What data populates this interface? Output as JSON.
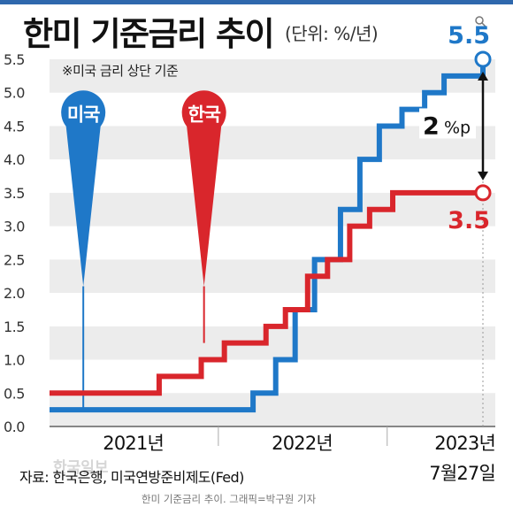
{
  "header": {
    "title": "한미 기준금리 추이",
    "unit": "(단위: %/년)"
  },
  "note": "※미국 금리 상단 기준",
  "footer": {
    "source": "자료: 한국은행, 미국연방준비제도(Fed)",
    "credit": "한미 기준금리 추이. 그래픽=박구원 기자",
    "watermark": "한국일보"
  },
  "colors": {
    "us": "#1f78c8",
    "korea": "#d9262c",
    "band": "#ececec",
    "top_bar": "#2f68ad"
  },
  "chart_data": {
    "type": "line",
    "step": true,
    "xlim": [
      "2021-01-01",
      "2023-07-27"
    ],
    "ylim": [
      0,
      5.5
    ],
    "yticks": [
      "0.0",
      "0.5",
      "1.0",
      "1.5",
      "2.0",
      "2.5",
      "3.0",
      "3.5",
      "4.0",
      "4.5",
      "5.0",
      "5.5"
    ],
    "xticks": [
      {
        "label": "2021년",
        "x": "2021-07-01"
      },
      {
        "label": "2022년",
        "x": "2022-07-01"
      },
      {
        "label": "2023년",
        "x": "2023-07-27",
        "sublabel": "7월27일"
      }
    ],
    "series": [
      {
        "name": "미국",
        "color": "#1f78c8",
        "points": [
          [
            "2021-01-01",
            0.25
          ],
          [
            "2022-03-17",
            0.5
          ],
          [
            "2022-05-05",
            1.0
          ],
          [
            "2022-06-16",
            1.75
          ],
          [
            "2022-07-28",
            2.5
          ],
          [
            "2022-09-22",
            3.25
          ],
          [
            "2022-11-03",
            4.0
          ],
          [
            "2022-12-15",
            4.5
          ],
          [
            "2023-02-02",
            4.75
          ],
          [
            "2023-03-23",
            5.0
          ],
          [
            "2023-05-04",
            5.25
          ],
          [
            "2023-07-27",
            5.5
          ]
        ],
        "end_label": "5.5"
      },
      {
        "name": "한국",
        "color": "#d9262c",
        "points": [
          [
            "2021-01-01",
            0.5
          ],
          [
            "2021-08-26",
            0.75
          ],
          [
            "2021-11-25",
            1.0
          ],
          [
            "2022-01-14",
            1.25
          ],
          [
            "2022-04-14",
            1.5
          ],
          [
            "2022-05-26",
            1.75
          ],
          [
            "2022-07-13",
            2.25
          ],
          [
            "2022-08-25",
            2.5
          ],
          [
            "2022-10-12",
            3.0
          ],
          [
            "2022-11-24",
            3.25
          ],
          [
            "2023-01-13",
            3.5
          ],
          [
            "2023-07-27",
            3.5
          ]
        ],
        "end_label": "3.5"
      }
    ],
    "pins": [
      {
        "label": "미국",
        "x": "2021-03-15",
        "y": 2.1,
        "series": "미국"
      },
      {
        "label": "한국",
        "x": "2021-12-01",
        "y": 2.1,
        "series": "한국"
      }
    ],
    "gap_annotation": {
      "value": "2",
      "unit": "%p",
      "from": 3.5,
      "to": 5.5
    }
  }
}
